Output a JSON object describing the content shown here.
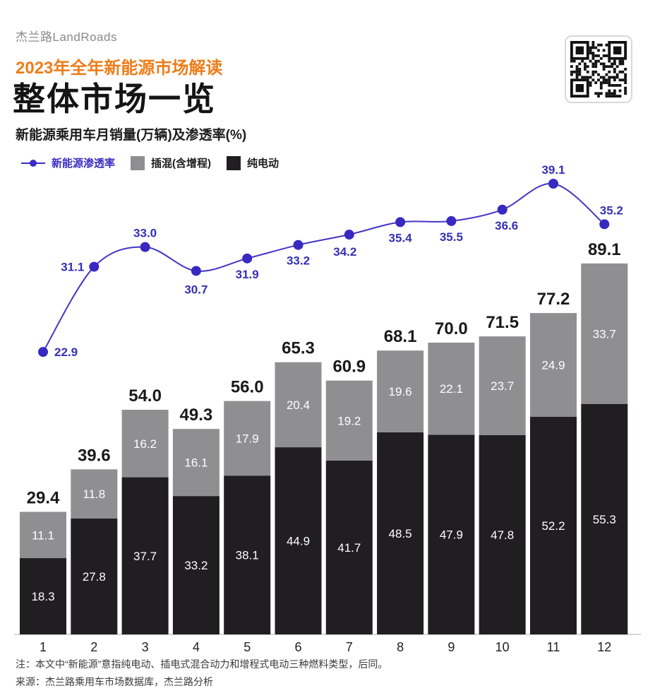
{
  "header": {
    "logo": "杰兰路LandRoads",
    "subtitle": "2023年全年新能源市场解读",
    "title": "整体市场一览",
    "chart_caption": "新能源乘用车月销量(万辆)及渗透率(%)"
  },
  "colors": {
    "accent_orange": "#ed7d1a",
    "bev_black": "#201e21",
    "phev_gray": "#8f8f91",
    "line_blue": "#3b2ec2"
  },
  "legend": [
    {
      "label": "新能源渗透率",
      "type": "line",
      "color": "#3b2ec2"
    },
    {
      "label": "插混(含增程)",
      "type": "square",
      "color": "#8f8f91"
    },
    {
      "label": "纯电动",
      "type": "square",
      "color": "#201e21"
    }
  ],
  "chart_data": {
    "type": "bar",
    "subtype": "stacked-bar-with-line-overlay",
    "title": "新能源乘用车月销量(万辆)及渗透率(%)",
    "xlabel": "",
    "ylabel": "",
    "grid": false,
    "legend_position": "top",
    "categories": [
      "1",
      "2",
      "3",
      "4",
      "5",
      "6",
      "7",
      "8",
      "9",
      "10",
      "11",
      "12"
    ],
    "series": [
      {
        "name": "纯电动",
        "type": "bar",
        "stack": "sales",
        "color": "#201e21",
        "values": [
          18.3,
          27.8,
          37.7,
          33.2,
          38.1,
          44.9,
          41.7,
          48.5,
          47.9,
          47.8,
          52.2,
          55.3
        ]
      },
      {
        "name": "插混(含增程)",
        "type": "bar",
        "stack": "sales",
        "color": "#8f8f91",
        "values": [
          11.1,
          11.8,
          16.2,
          16.1,
          17.9,
          20.4,
          19.2,
          19.6,
          22.1,
          23.7,
          24.9,
          33.7
        ]
      },
      {
        "name": "新能源渗透率",
        "type": "line",
        "color": "#3b2ec2",
        "values": [
          22.9,
          31.1,
          33.0,
          30.7,
          31.9,
          33.2,
          34.2,
          35.4,
          35.5,
          36.6,
          39.1,
          35.2
        ]
      }
    ],
    "stack_totals": [
      29.4,
      39.6,
      54.0,
      49.3,
      56.0,
      65.3,
      60.9,
      68.1,
      70.0,
      71.5,
      77.2,
      89.1
    ]
  },
  "footnotes": {
    "note": "注：本文中“新能源”意指纯电动、插电式混合动力和增程式电动三种燃料类型，后同。",
    "source": "来源：杰兰路乘用车市场数据库，杰兰路分析"
  }
}
